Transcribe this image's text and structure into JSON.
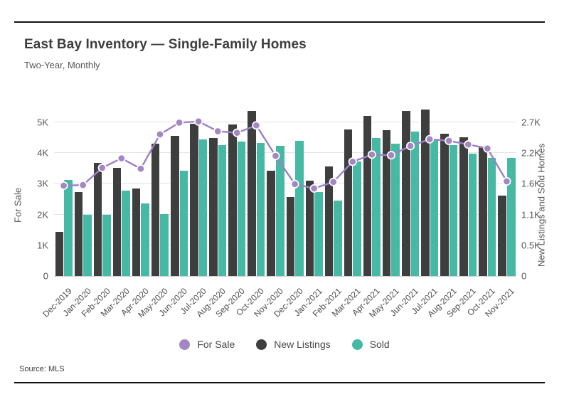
{
  "page": {
    "title": "East Bay Inventory — Single-Family Homes",
    "subtitle": "Two-Year, Monthly",
    "source": "Source:  MLS",
    "rule_color": "#111111"
  },
  "chart_data": {
    "type": "combo-bar-line",
    "title": "East Bay Inventory — Single-Family Homes",
    "subtitle": "Two-Year, Monthly",
    "grid": true,
    "legend_position": "bottom",
    "categories": [
      "Dec-2019",
      "Jan-2020",
      "Feb-2020",
      "Mar-2020",
      "Apr-2020",
      "May-2020",
      "Jun-2020",
      "Jul-2020",
      "Aug-2020",
      "Sep-2020",
      "Oct-2020",
      "Nov-2020",
      "Dec-2020",
      "Jan-2021",
      "Feb-2021",
      "Mar-2021",
      "Apr-2021",
      "May-2021",
      "Jun-2021",
      "Jul-2021",
      "Aug-2021",
      "Sep-2021",
      "Oct-2021",
      "Nov-2021"
    ],
    "series": [
      {
        "name": "New Listings",
        "type": "bar",
        "axis": "right",
        "color": "#3e3e3e",
        "values": [
          780,
          1470,
          1990,
          1900,
          1540,
          2330,
          2460,
          2680,
          2420,
          2660,
          2900,
          1850,
          1390,
          1680,
          1920,
          2580,
          2810,
          2560,
          2900,
          2930,
          2500,
          2440,
          2280,
          1410
        ]
      },
      {
        "name": "Sold",
        "type": "bar",
        "axis": "right",
        "color": "#45b9a3",
        "values": [
          1690,
          1080,
          1070,
          1500,
          1270,
          1090,
          1850,
          2400,
          2300,
          2360,
          2340,
          2290,
          2380,
          1480,
          1320,
          2010,
          2420,
          2320,
          2540,
          2390,
          2300,
          2150,
          2070,
          2080
        ]
      },
      {
        "name": "For Sale",
        "type": "line",
        "axis": "left",
        "color": "#a486c2",
        "line_color": "#9d80c6",
        "values": [
          2940,
          2960,
          3520,
          3830,
          3490,
          4610,
          4990,
          5030,
          4710,
          4660,
          4900,
          3910,
          2990,
          2850,
          3060,
          3720,
          3950,
          3930,
          4230,
          4450,
          4400,
          4280,
          4150,
          3080
        ]
      }
    ],
    "left_axis": {
      "title": "For Sale",
      "max": 5000,
      "ticks": [
        {
          "value": 0,
          "label": "0"
        },
        {
          "value": 1000,
          "label": "1K"
        },
        {
          "value": 2000,
          "label": "2K"
        },
        {
          "value": 3000,
          "label": "3K"
        },
        {
          "value": 4000,
          "label": "4K"
        },
        {
          "value": 5000,
          "label": "5K"
        }
      ]
    },
    "right_axis": {
      "title": "New Listings and Sold Homes",
      "max": 2700,
      "ticks": [
        {
          "value": 0,
          "label": "0"
        },
        {
          "value": 540,
          "label": "0.5K"
        },
        {
          "value": 1080,
          "label": "1.1K"
        },
        {
          "value": 1620,
          "label": "1.6K"
        },
        {
          "value": 2160,
          "label": "2.2K"
        },
        {
          "value": 2700,
          "label": "2.7K"
        }
      ]
    },
    "legend": [
      {
        "label": "For Sale",
        "color": "#a486c2"
      },
      {
        "label": "New Listings",
        "color": "#3e3e3e"
      },
      {
        "label": "Sold",
        "color": "#45b9a3"
      }
    ]
  }
}
